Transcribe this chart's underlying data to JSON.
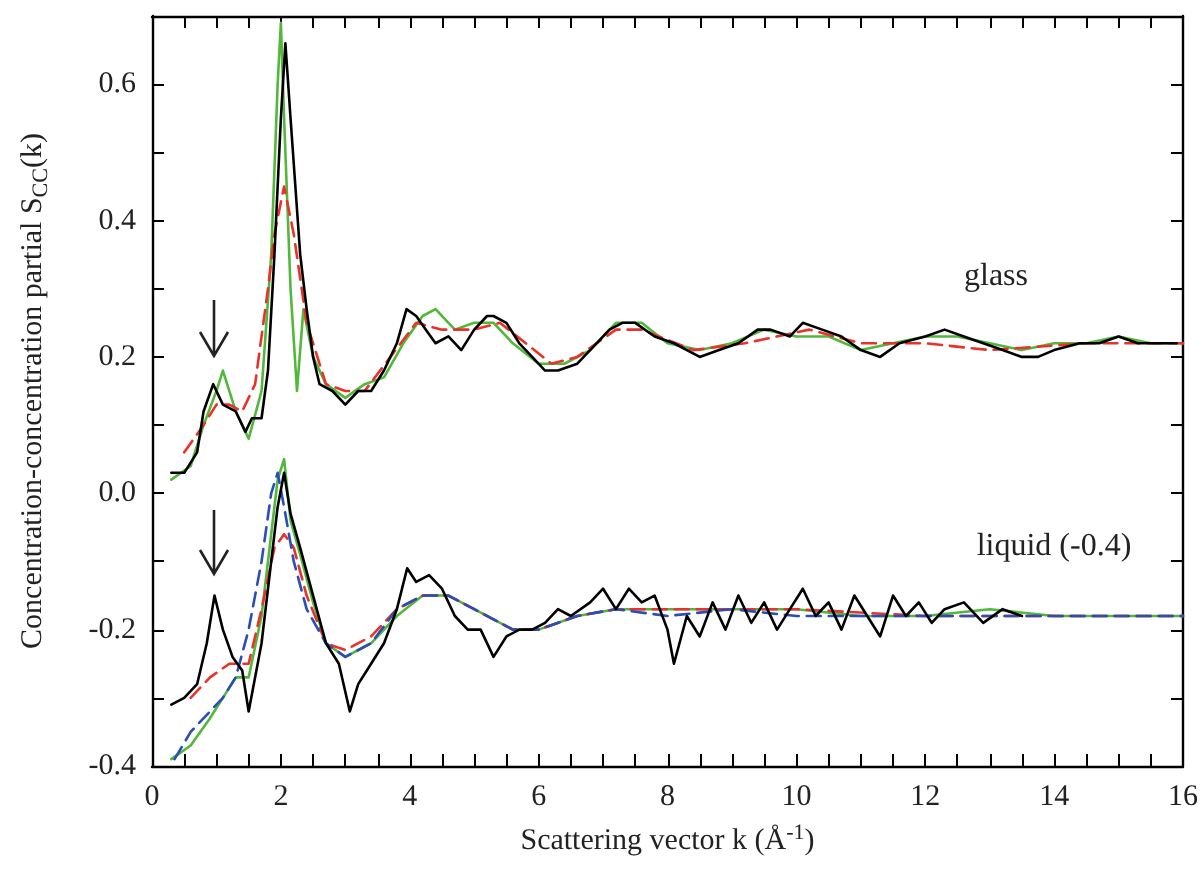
{
  "chart_data": {
    "type": "line",
    "xlabel": "Scattering vector k (Å$^{-1}$)",
    "ylabel": "Concentration-concentration partial S$_{CC}$(k)",
    "xlim": [
      0,
      16
    ],
    "xticks": [
      0,
      {
        "value": 0.5,
        "label": null
      },
      {
        "value": 1,
        "label": null
      },
      {
        "value": 1.5,
        "label": null
      },
      2,
      {
        "value": 2.5,
        "label": null
      },
      {
        "value": 3,
        "label": null
      },
      {
        "value": 3.5,
        "label": null
      },
      4,
      {
        "value": 4.5,
        "label": null
      },
      {
        "value": 5,
        "label": null
      },
      {
        "value": 5.5,
        "label": null
      },
      6,
      {
        "value": 6.5,
        "label": null
      },
      {
        "value": 7,
        "label": null
      },
      {
        "value": 7.5,
        "label": null
      },
      8,
      {
        "value": 8.5,
        "label": null
      },
      {
        "value": 9,
        "label": null
      },
      {
        "value": 9.5,
        "label": null
      },
      10,
      {
        "value": 10.5,
        "label": null
      },
      {
        "value": 11,
        "label": null
      },
      {
        "value": 11.5,
        "label": null
      },
      12,
      {
        "value": 12.5,
        "label": null
      },
      {
        "value": 13,
        "label": null
      },
      {
        "value": 13.5,
        "label": null
      },
      14,
      {
        "value": 14.5,
        "label": null
      },
      {
        "value": 15,
        "label": null
      },
      {
        "value": 15.5,
        "label": null
      },
      16
    ],
    "ylim": [
      -0.4,
      0.7
    ],
    "yticks": [
      -0.4,
      {
        "value": -0.3,
        "label": null
      },
      -0.2,
      {
        "value": -0.1,
        "label": null
      },
      {
        "value": 0,
        "label": "0.0"
      },
      {
        "value": 0.1,
        "label": null
      },
      0.2,
      {
        "value": 0.3,
        "label": null
      },
      0.4,
      {
        "value": 0.5,
        "label": null
      },
      0.6
    ],
    "grid": false,
    "marker": "none",
    "annotations": [
      "glass",
      "liquid (-0.4)"
    ],
    "series": [
      {
        "color": "#52b83c",
        "line_style": "solid",
        "x": [
          0.3,
          0.6,
          0.8,
          1.0,
          1.1,
          1.3,
          1.5,
          1.7,
          1.85,
          1.95,
          2.0,
          2.05,
          2.15,
          2.25,
          2.35,
          2.5,
          2.7,
          3.0,
          3.3,
          3.6,
          3.9,
          4.2,
          4.4,
          4.7,
          5.0,
          5.3,
          5.6,
          6.0,
          6.4,
          6.8,
          7.2,
          7.6,
          8.0,
          8.5,
          9.0,
          9.5,
          10.0,
          10.5,
          11.0,
          11.5,
          12.0,
          12.5,
          13.0,
          13.5,
          14.0,
          14.5,
          15.0,
          15.5,
          16.0
        ],
        "values": [
          0.02,
          0.04,
          0.1,
          0.15,
          0.18,
          0.12,
          0.08,
          0.15,
          0.35,
          0.6,
          0.69,
          0.55,
          0.3,
          0.15,
          0.27,
          0.2,
          0.16,
          0.14,
          0.16,
          0.17,
          0.22,
          0.26,
          0.27,
          0.24,
          0.25,
          0.25,
          0.22,
          0.19,
          0.19,
          0.21,
          0.25,
          0.25,
          0.22,
          0.21,
          0.22,
          0.24,
          0.23,
          0.23,
          0.21,
          0.22,
          0.23,
          0.23,
          0.22,
          0.21,
          0.22,
          0.22,
          0.23,
          0.22,
          0.22
        ]
      },
      {
        "color": "#e8332a",
        "line_style": "dashed",
        "x": [
          0.5,
          0.8,
          1.0,
          1.2,
          1.4,
          1.6,
          1.8,
          1.9,
          2.05,
          2.2,
          2.4,
          2.7,
          3.0,
          3.3,
          3.7,
          4.1,
          4.5,
          5.0,
          5.4,
          5.8,
          6.2,
          6.6,
          7.2,
          7.6,
          8.4,
          9.2,
          10.2,
          11.0,
          12.0,
          13.0,
          14.5,
          16.0
        ],
        "values": [
          0.06,
          0.1,
          0.13,
          0.13,
          0.12,
          0.16,
          0.3,
          0.38,
          0.45,
          0.38,
          0.25,
          0.16,
          0.15,
          0.15,
          0.2,
          0.25,
          0.24,
          0.24,
          0.25,
          0.22,
          0.19,
          0.2,
          0.24,
          0.24,
          0.21,
          0.22,
          0.24,
          0.22,
          0.22,
          0.21,
          0.22,
          0.22
        ]
      },
      {
        "color": "#000000",
        "line_style": "solid",
        "x": [
          0.3,
          0.5,
          0.7,
          0.8,
          0.95,
          1.1,
          1.3,
          1.45,
          1.55,
          1.7,
          1.8,
          1.9,
          2.0,
          2.07,
          2.15,
          2.3,
          2.4,
          2.5,
          2.6,
          2.8,
          3.0,
          3.2,
          3.4,
          3.6,
          3.8,
          3.95,
          4.1,
          4.25,
          4.4,
          4.6,
          4.8,
          5.0,
          5.2,
          5.3,
          5.5,
          5.7,
          5.9,
          6.1,
          6.3,
          6.6,
          6.8,
          7.1,
          7.3,
          7.5,
          7.8,
          8.1,
          8.5,
          8.8,
          9.1,
          9.4,
          9.6,
          9.9,
          10.1,
          10.4,
          10.7,
          11.0,
          11.3,
          11.6,
          12.0,
          12.3,
          12.6,
          12.9,
          13.2,
          13.5,
          13.75,
          14.0,
          14.4,
          14.7,
          15.0,
          15.3,
          15.6,
          15.9
        ],
        "values": [
          0.03,
          0.03,
          0.06,
          0.12,
          0.16,
          0.13,
          0.12,
          0.09,
          0.11,
          0.11,
          0.18,
          0.35,
          0.55,
          0.66,
          0.55,
          0.35,
          0.27,
          0.2,
          0.16,
          0.15,
          0.13,
          0.15,
          0.15,
          0.18,
          0.22,
          0.27,
          0.26,
          0.24,
          0.22,
          0.23,
          0.21,
          0.24,
          0.26,
          0.26,
          0.25,
          0.22,
          0.2,
          0.18,
          0.18,
          0.19,
          0.21,
          0.24,
          0.25,
          0.25,
          0.23,
          0.22,
          0.2,
          0.21,
          0.22,
          0.24,
          0.24,
          0.23,
          0.25,
          0.24,
          0.23,
          0.21,
          0.2,
          0.22,
          0.23,
          0.24,
          0.23,
          0.22,
          0.21,
          0.2,
          0.2,
          0.21,
          0.22,
          0.22,
          0.23,
          0.22,
          0.22,
          0.22
        ]
      },
      {
        "color": "#52b83c",
        "line_style": "solid",
        "x": [
          0.3,
          0.6,
          0.9,
          1.1,
          1.3,
          1.5,
          1.7,
          1.85,
          1.95,
          2.05,
          2.15,
          2.3,
          2.5,
          2.7,
          3.0,
          3.4,
          3.8,
          4.2,
          4.6,
          5.0,
          5.6,
          6.0,
          6.6,
          7.2,
          8.0,
          9.0,
          10.0,
          11.0,
          12.0,
          13.0,
          14.0,
          15.0,
          16.0
        ],
        "values": [
          -0.39,
          -0.37,
          -0.33,
          -0.3,
          -0.27,
          -0.27,
          -0.18,
          -0.06,
          0.02,
          0.05,
          -0.04,
          -0.09,
          -0.16,
          -0.22,
          -0.24,
          -0.22,
          -0.18,
          -0.15,
          -0.15,
          -0.17,
          -0.2,
          -0.2,
          -0.18,
          -0.17,
          -0.17,
          -0.17,
          -0.17,
          -0.18,
          -0.18,
          -0.17,
          -0.18,
          -0.18,
          -0.18
        ]
      },
      {
        "color": "#e8332a",
        "line_style": "dashed",
        "x": [
          0.6,
          0.9,
          1.2,
          1.5,
          1.7,
          1.9,
          2.05,
          2.2,
          2.4,
          2.7,
          3.0,
          3.4,
          3.8,
          4.2,
          4.6,
          5.0,
          5.6,
          6.0,
          6.6,
          7.2,
          8.0,
          9.0,
          10.0,
          12.0,
          14.0,
          16.0
        ],
        "values": [
          -0.3,
          -0.27,
          -0.25,
          -0.25,
          -0.17,
          -0.08,
          -0.06,
          -0.08,
          -0.15,
          -0.22,
          -0.23,
          -0.21,
          -0.17,
          -0.15,
          -0.15,
          -0.17,
          -0.2,
          -0.2,
          -0.18,
          -0.17,
          -0.17,
          -0.17,
          -0.17,
          -0.18,
          -0.18,
          -0.18
        ]
      },
      {
        "color": "#2a4db8",
        "line_style": "dashed",
        "x": [
          0.35,
          0.6,
          0.9,
          1.1,
          1.3,
          1.5,
          1.7,
          1.85,
          1.95,
          2.05,
          2.2,
          2.4,
          2.7,
          3.0,
          3.4,
          3.8,
          4.2,
          4.6,
          5.0,
          5.6,
          6.0,
          6.6,
          7.2,
          8.0,
          9.0,
          10.0,
          11.0,
          12.0,
          13.0,
          14.0,
          15.0,
          16.0
        ],
        "values": [
          -0.39,
          -0.35,
          -0.32,
          -0.3,
          -0.27,
          -0.2,
          -0.1,
          0.0,
          0.03,
          -0.02,
          -0.1,
          -0.17,
          -0.22,
          -0.24,
          -0.22,
          -0.17,
          -0.15,
          -0.15,
          -0.17,
          -0.2,
          -0.2,
          -0.18,
          -0.17,
          -0.18,
          -0.17,
          -0.18,
          -0.18,
          -0.18,
          -0.18,
          -0.18,
          -0.18,
          -0.18
        ]
      },
      {
        "color": "#000000",
        "line_style": "solid",
        "x": [
          0.3,
          0.5,
          0.7,
          0.85,
          0.97,
          1.1,
          1.25,
          1.4,
          1.5,
          1.7,
          1.85,
          1.95,
          2.05,
          2.15,
          2.3,
          2.5,
          2.7,
          2.9,
          3.07,
          3.2,
          3.4,
          3.6,
          3.8,
          3.96,
          4.1,
          4.3,
          4.5,
          4.7,
          4.9,
          5.1,
          5.3,
          5.5,
          5.7,
          5.9,
          6.1,
          6.3,
          6.5,
          6.8,
          7.0,
          7.2,
          7.4,
          7.6,
          7.8,
          8.0,
          8.1,
          8.3,
          8.5,
          8.7,
          8.9,
          9.1,
          9.3,
          9.5,
          9.7,
          9.9,
          10.1,
          10.3,
          10.5,
          10.7,
          10.9,
          11.1,
          11.3,
          11.5,
          11.7,
          11.9,
          12.1,
          12.3,
          12.6,
          12.9,
          13.2,
          13.5
        ],
        "values": [
          -0.31,
          -0.3,
          -0.28,
          -0.22,
          -0.15,
          -0.2,
          -0.24,
          -0.26,
          -0.32,
          -0.22,
          -0.1,
          -0.02,
          0.03,
          -0.03,
          -0.08,
          -0.15,
          -0.22,
          -0.25,
          -0.32,
          -0.28,
          -0.25,
          -0.22,
          -0.17,
          -0.11,
          -0.13,
          -0.12,
          -0.14,
          -0.18,
          -0.2,
          -0.2,
          -0.24,
          -0.21,
          -0.2,
          -0.2,
          -0.19,
          -0.17,
          -0.18,
          -0.16,
          -0.14,
          -0.17,
          -0.14,
          -0.16,
          -0.15,
          -0.2,
          -0.25,
          -0.18,
          -0.21,
          -0.16,
          -0.2,
          -0.15,
          -0.19,
          -0.16,
          -0.2,
          -0.17,
          -0.14,
          -0.18,
          -0.16,
          -0.2,
          -0.15,
          -0.18,
          -0.21,
          -0.15,
          -0.18,
          -0.16,
          -0.19,
          -0.17,
          -0.16,
          -0.19,
          -0.17,
          -0.18
        ]
      }
    ]
  }
}
